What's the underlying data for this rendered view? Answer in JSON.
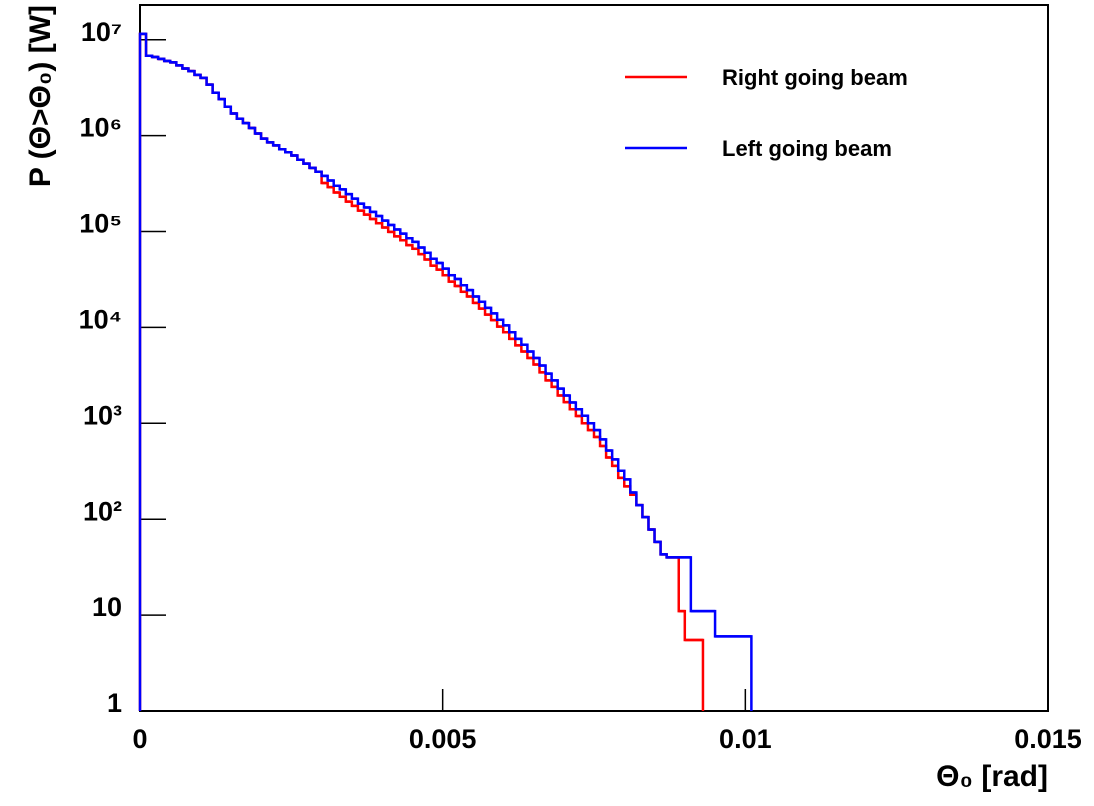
{
  "chart_data": {
    "type": "histogram",
    "xlabel": "Θ₀ [rad]",
    "ylabel": "P (Θ>Θ₀)  [W]",
    "log_y": true,
    "legend": "top right",
    "xlim": [
      0,
      0.015
    ],
    "ylim": [
      1,
      23000000
    ],
    "xticks": [
      0,
      0.005,
      0.01,
      0.015
    ],
    "yticks": [
      1,
      10,
      {
        "value": 100,
        "label": "10²"
      },
      {
        "value": 1000,
        "label": "10³"
      },
      {
        "value": 10000,
        "label": "10⁴"
      },
      {
        "value": 100000,
        "label": "10⁵"
      },
      {
        "value": 1000000,
        "label": "10⁶"
      },
      {
        "value": 10000000,
        "label": "10⁷"
      }
    ],
    "bins": [
      0,
      0.0001,
      0.0002,
      0.0003,
      0.0004,
      0.0005,
      0.0006,
      0.0007,
      0.0008,
      0.0009,
      0.001,
      0.0011,
      0.0012,
      0.0013,
      0.0014,
      0.0015,
      0.0016,
      0.0017,
      0.0018,
      0.0019,
      0.002,
      0.0021,
      0.0022,
      0.0023,
      0.0024,
      0.0025,
      0.0026,
      0.0027,
      0.0028,
      0.0029,
      0.003,
      0.0031,
      0.0032,
      0.0033,
      0.0034,
      0.0035,
      0.0036,
      0.0037,
      0.0038,
      0.0039,
      0.004,
      0.0041,
      0.0042,
      0.0043,
      0.0044,
      0.0045,
      0.0046,
      0.0047,
      0.0048,
      0.0049,
      0.005,
      0.0051,
      0.0052,
      0.0053,
      0.0054,
      0.0055,
      0.0056,
      0.0057,
      0.0058,
      0.0059,
      0.006,
      0.0061,
      0.0062,
      0.0063,
      0.0064,
      0.0065,
      0.0066,
      0.0067,
      0.0068,
      0.0069,
      0.007,
      0.0071,
      0.0072,
      0.0073,
      0.0074,
      0.0075,
      0.0076,
      0.0077,
      0.0078,
      0.0079,
      0.008,
      0.0081,
      0.0082,
      0.0083,
      0.0084,
      0.0085,
      0.0086,
      0.0087,
      0.0088,
      0.0089,
      0.009,
      0.0091,
      0.0092,
      0.0093,
      0.0094,
      0.0095,
      0.0096,
      0.0097,
      0.0098,
      0.0099,
      0.01,
      0.0101
    ],
    "series": [
      {
        "name": "Right going beam",
        "color": "#ff0000",
        "values": [
          11500000,
          6800000,
          6600000,
          6300000,
          6000000,
          5800000,
          5400000,
          5000000,
          4700000,
          4300000,
          4000000,
          3400000,
          2800000,
          2400000,
          2000000,
          1700000,
          1500000,
          1350000,
          1200000,
          1050000,
          930000,
          850000,
          790000,
          720000,
          670000,
          620000,
          560000,
          510000,
          460000,
          420000,
          320000,
          290000,
          255000,
          230000,
          205000,
          185000,
          165000,
          150000,
          135000,
          122000,
          110000,
          99000,
          89000,
          81000,
          72000,
          66000,
          58000,
          51000,
          44000,
          40000,
          35000,
          30000,
          27000,
          23500,
          21000,
          18000,
          15700,
          13600,
          11900,
          10200,
          8900,
          7600,
          6500,
          5600,
          4800,
          4100,
          3400,
          2800,
          2400,
          1950,
          1660,
          1400,
          1190,
          1000,
          850,
          720,
          580,
          440,
          360,
          270,
          220,
          180,
          140,
          105,
          78,
          58,
          43,
          40,
          40,
          11,
          5.5,
          5.5,
          5.5,
          null,
          null,
          null,
          null,
          null,
          null,
          null,
          null
        ]
      },
      {
        "name": "Left going beam",
        "color": "#0000ff",
        "values": [
          11500000,
          6800000,
          6600000,
          6300000,
          6000000,
          5800000,
          5400000,
          5000000,
          4700000,
          4300000,
          4000000,
          3400000,
          2800000,
          2400000,
          2000000,
          1700000,
          1500000,
          1350000,
          1200000,
          1050000,
          930000,
          850000,
          790000,
          720000,
          670000,
          620000,
          560000,
          510000,
          460000,
          420000,
          380000,
          340000,
          300000,
          275000,
          245000,
          220000,
          195000,
          178000,
          160000,
          145000,
          130000,
          117000,
          105000,
          95000,
          85000,
          78000,
          68000,
          60000,
          52000,
          47000,
          41000,
          35000,
          32000,
          27500,
          24500,
          21000,
          18500,
          16000,
          14000,
          12000,
          10500,
          8900,
          7600,
          6600,
          5600,
          4800,
          4000,
          3300,
          2800,
          2300,
          1950,
          1650,
          1400,
          1200,
          1000,
          850,
          680,
          520,
          420,
          320,
          260,
          190,
          140,
          105,
          78,
          58,
          43,
          40,
          40,
          40,
          40,
          11,
          11,
          11,
          11,
          6,
          6,
          6,
          6,
          6,
          6
        ]
      }
    ]
  }
}
